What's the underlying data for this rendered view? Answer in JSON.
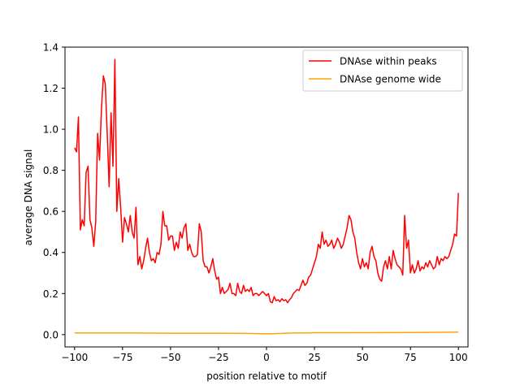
{
  "chart_data": {
    "type": "line",
    "xlabel": "position relative to motif",
    "ylabel": "average DNA signal",
    "xlim": [
      -105,
      105
    ],
    "ylim": [
      -0.06,
      1.4
    ],
    "xticks": [
      -100,
      -75,
      -50,
      -25,
      0,
      25,
      50,
      75,
      100
    ],
    "yticks": [
      0.0,
      0.2,
      0.4,
      0.6,
      0.8,
      1.0,
      1.2,
      1.4
    ],
    "xtick_labels": [
      "−100",
      "−75",
      "−50",
      "−25",
      "0",
      "25",
      "50",
      "75",
      "100"
    ],
    "ytick_labels": [
      "0.0",
      "0.2",
      "0.4",
      "0.6",
      "0.8",
      "1.0",
      "1.2",
      "1.4"
    ],
    "grid": false,
    "legend_position": "top-right",
    "series": [
      {
        "name": "DNAse within peaks",
        "color": "#ff0000",
        "points": [
          [
            -100,
            0.91
          ],
          [
            -99,
            0.89
          ],
          [
            -98,
            1.06
          ],
          [
            -97,
            0.51
          ],
          [
            -96,
            0.56
          ],
          [
            -95,
            0.53
          ],
          [
            -94,
            0.79
          ],
          [
            -93,
            0.82
          ],
          [
            -92,
            0.56
          ],
          [
            -91,
            0.52
          ],
          [
            -90,
            0.43
          ],
          [
            -89,
            0.55
          ],
          [
            -88,
            0.98
          ],
          [
            -87,
            0.85
          ],
          [
            -86,
            1.1
          ],
          [
            -85,
            1.26
          ],
          [
            -84,
            1.22
          ],
          [
            -83,
            0.98
          ],
          [
            -82,
            0.72
          ],
          [
            -81,
            1.08
          ],
          [
            -80,
            0.82
          ],
          [
            -79,
            1.34
          ],
          [
            -78,
            0.6
          ],
          [
            -77,
            0.76
          ],
          [
            -76,
            0.62
          ],
          [
            -75,
            0.45
          ],
          [
            -74,
            0.57
          ],
          [
            -73,
            0.54
          ],
          [
            -72,
            0.5
          ],
          [
            -71,
            0.58
          ],
          [
            -70,
            0.5
          ],
          [
            -69,
            0.47
          ],
          [
            -68,
            0.62
          ],
          [
            -67,
            0.34
          ],
          [
            -66,
            0.38
          ],
          [
            -65,
            0.32
          ],
          [
            -64,
            0.36
          ],
          [
            -63,
            0.42
          ],
          [
            -62,
            0.47
          ],
          [
            -61,
            0.4
          ],
          [
            -60,
            0.36
          ],
          [
            -59,
            0.37
          ],
          [
            -58,
            0.35
          ],
          [
            -57,
            0.4
          ],
          [
            -56,
            0.39
          ],
          [
            -55,
            0.44
          ],
          [
            -54,
            0.6
          ],
          [
            -53,
            0.53
          ],
          [
            -52,
            0.53
          ],
          [
            -51,
            0.46
          ],
          [
            -50,
            0.48
          ],
          [
            -49,
            0.48
          ],
          [
            -48,
            0.41
          ],
          [
            -47,
            0.45
          ],
          [
            -46,
            0.42
          ],
          [
            -45,
            0.5
          ],
          [
            -44,
            0.47
          ],
          [
            -43,
            0.52
          ],
          [
            -42,
            0.54
          ],
          [
            -41,
            0.41
          ],
          [
            -40,
            0.44
          ],
          [
            -39,
            0.4
          ],
          [
            -38,
            0.38
          ],
          [
            -37,
            0.38
          ],
          [
            -36,
            0.39
          ],
          [
            -35,
            0.54
          ],
          [
            -34,
            0.5
          ],
          [
            -33,
            0.36
          ],
          [
            -32,
            0.33
          ],
          [
            -31,
            0.33
          ],
          [
            -30,
            0.3
          ],
          [
            -29,
            0.33
          ],
          [
            -28,
            0.37
          ],
          [
            -27,
            0.31
          ],
          [
            -26,
            0.27
          ],
          [
            -25,
            0.28
          ],
          [
            -24,
            0.2
          ],
          [
            -23,
            0.23
          ],
          [
            -22,
            0.2
          ],
          [
            -21,
            0.21
          ],
          [
            -20,
            0.22
          ],
          [
            -19,
            0.25
          ],
          [
            -18,
            0.2
          ],
          [
            -17,
            0.2
          ],
          [
            -16,
            0.19
          ],
          [
            -15,
            0.25
          ],
          [
            -14,
            0.21
          ],
          [
            -13,
            0.2
          ],
          [
            -12,
            0.24
          ],
          [
            -11,
            0.21
          ],
          [
            -10,
            0.22
          ],
          [
            -9,
            0.21
          ],
          [
            -8,
            0.23
          ],
          [
            -7,
            0.19
          ],
          [
            -6,
            0.2
          ],
          [
            -5,
            0.2
          ],
          [
            -4,
            0.19
          ],
          [
            -3,
            0.2
          ],
          [
            -2,
            0.21
          ],
          [
            -1,
            0.2
          ],
          [
            0,
            0.19
          ],
          [
            1,
            0.2
          ],
          [
            2,
            0.16
          ],
          [
            3,
            0.155
          ],
          [
            4,
            0.185
          ],
          [
            5,
            0.165
          ],
          [
            6,
            0.17
          ],
          [
            7,
            0.16
          ],
          [
            8,
            0.175
          ],
          [
            9,
            0.165
          ],
          [
            10,
            0.17
          ],
          [
            11,
            0.155
          ],
          [
            12,
            0.17
          ],
          [
            13,
            0.18
          ],
          [
            14,
            0.2
          ],
          [
            15,
            0.21
          ],
          [
            16,
            0.22
          ],
          [
            17,
            0.215
          ],
          [
            18,
            0.24
          ],
          [
            19,
            0.265
          ],
          [
            20,
            0.24
          ],
          [
            21,
            0.25
          ],
          [
            22,
            0.28
          ],
          [
            23,
            0.29
          ],
          [
            24,
            0.32
          ],
          [
            25,
            0.35
          ],
          [
            26,
            0.38
          ],
          [
            27,
            0.44
          ],
          [
            28,
            0.42
          ],
          [
            29,
            0.5
          ],
          [
            30,
            0.44
          ],
          [
            31,
            0.46
          ],
          [
            32,
            0.43
          ],
          [
            33,
            0.44
          ],
          [
            34,
            0.46
          ],
          [
            35,
            0.42
          ],
          [
            36,
            0.44
          ],
          [
            37,
            0.47
          ],
          [
            38,
            0.45
          ],
          [
            39,
            0.42
          ],
          [
            40,
            0.44
          ],
          [
            41,
            0.48
          ],
          [
            42,
            0.52
          ],
          [
            43,
            0.58
          ],
          [
            44,
            0.56
          ],
          [
            45,
            0.5
          ],
          [
            46,
            0.47
          ],
          [
            47,
            0.4
          ],
          [
            48,
            0.35
          ],
          [
            49,
            0.32
          ],
          [
            50,
            0.37
          ],
          [
            51,
            0.33
          ],
          [
            52,
            0.35
          ],
          [
            53,
            0.32
          ],
          [
            54,
            0.4
          ],
          [
            55,
            0.43
          ],
          [
            56,
            0.38
          ],
          [
            57,
            0.36
          ],
          [
            58,
            0.3
          ],
          [
            59,
            0.27
          ],
          [
            60,
            0.26
          ],
          [
            61,
            0.33
          ],
          [
            62,
            0.36
          ],
          [
            63,
            0.32
          ],
          [
            64,
            0.38
          ],
          [
            65,
            0.32
          ],
          [
            66,
            0.41
          ],
          [
            67,
            0.37
          ],
          [
            68,
            0.34
          ],
          [
            69,
            0.33
          ],
          [
            70,
            0.32
          ],
          [
            71,
            0.29
          ],
          [
            72,
            0.58
          ],
          [
            73,
            0.42
          ],
          [
            74,
            0.46
          ],
          [
            75,
            0.3
          ],
          [
            76,
            0.34
          ],
          [
            77,
            0.3
          ],
          [
            78,
            0.32
          ],
          [
            79,
            0.36
          ],
          [
            80,
            0.31
          ],
          [
            81,
            0.33
          ],
          [
            82,
            0.32
          ],
          [
            83,
            0.35
          ],
          [
            84,
            0.33
          ],
          [
            85,
            0.36
          ],
          [
            86,
            0.34
          ],
          [
            87,
            0.32
          ],
          [
            88,
            0.33
          ],
          [
            89,
            0.38
          ],
          [
            90,
            0.34
          ],
          [
            91,
            0.37
          ],
          [
            92,
            0.36
          ],
          [
            93,
            0.38
          ],
          [
            94,
            0.37
          ],
          [
            95,
            0.38
          ],
          [
            96,
            0.41
          ],
          [
            97,
            0.44
          ],
          [
            98,
            0.49
          ],
          [
            99,
            0.48
          ],
          [
            100,
            0.69
          ]
        ]
      },
      {
        "name": "DNAse genome wide",
        "color": "#ffa500",
        "points": [
          [
            -100,
            0.008
          ],
          [
            -75,
            0.008
          ],
          [
            -50,
            0.007
          ],
          [
            -25,
            0.007
          ],
          [
            -10,
            0.006
          ],
          [
            0,
            0.004
          ],
          [
            5,
            0.005
          ],
          [
            15,
            0.008
          ],
          [
            25,
            0.009
          ],
          [
            50,
            0.009
          ],
          [
            75,
            0.01
          ],
          [
            100,
            0.012
          ]
        ]
      }
    ]
  }
}
